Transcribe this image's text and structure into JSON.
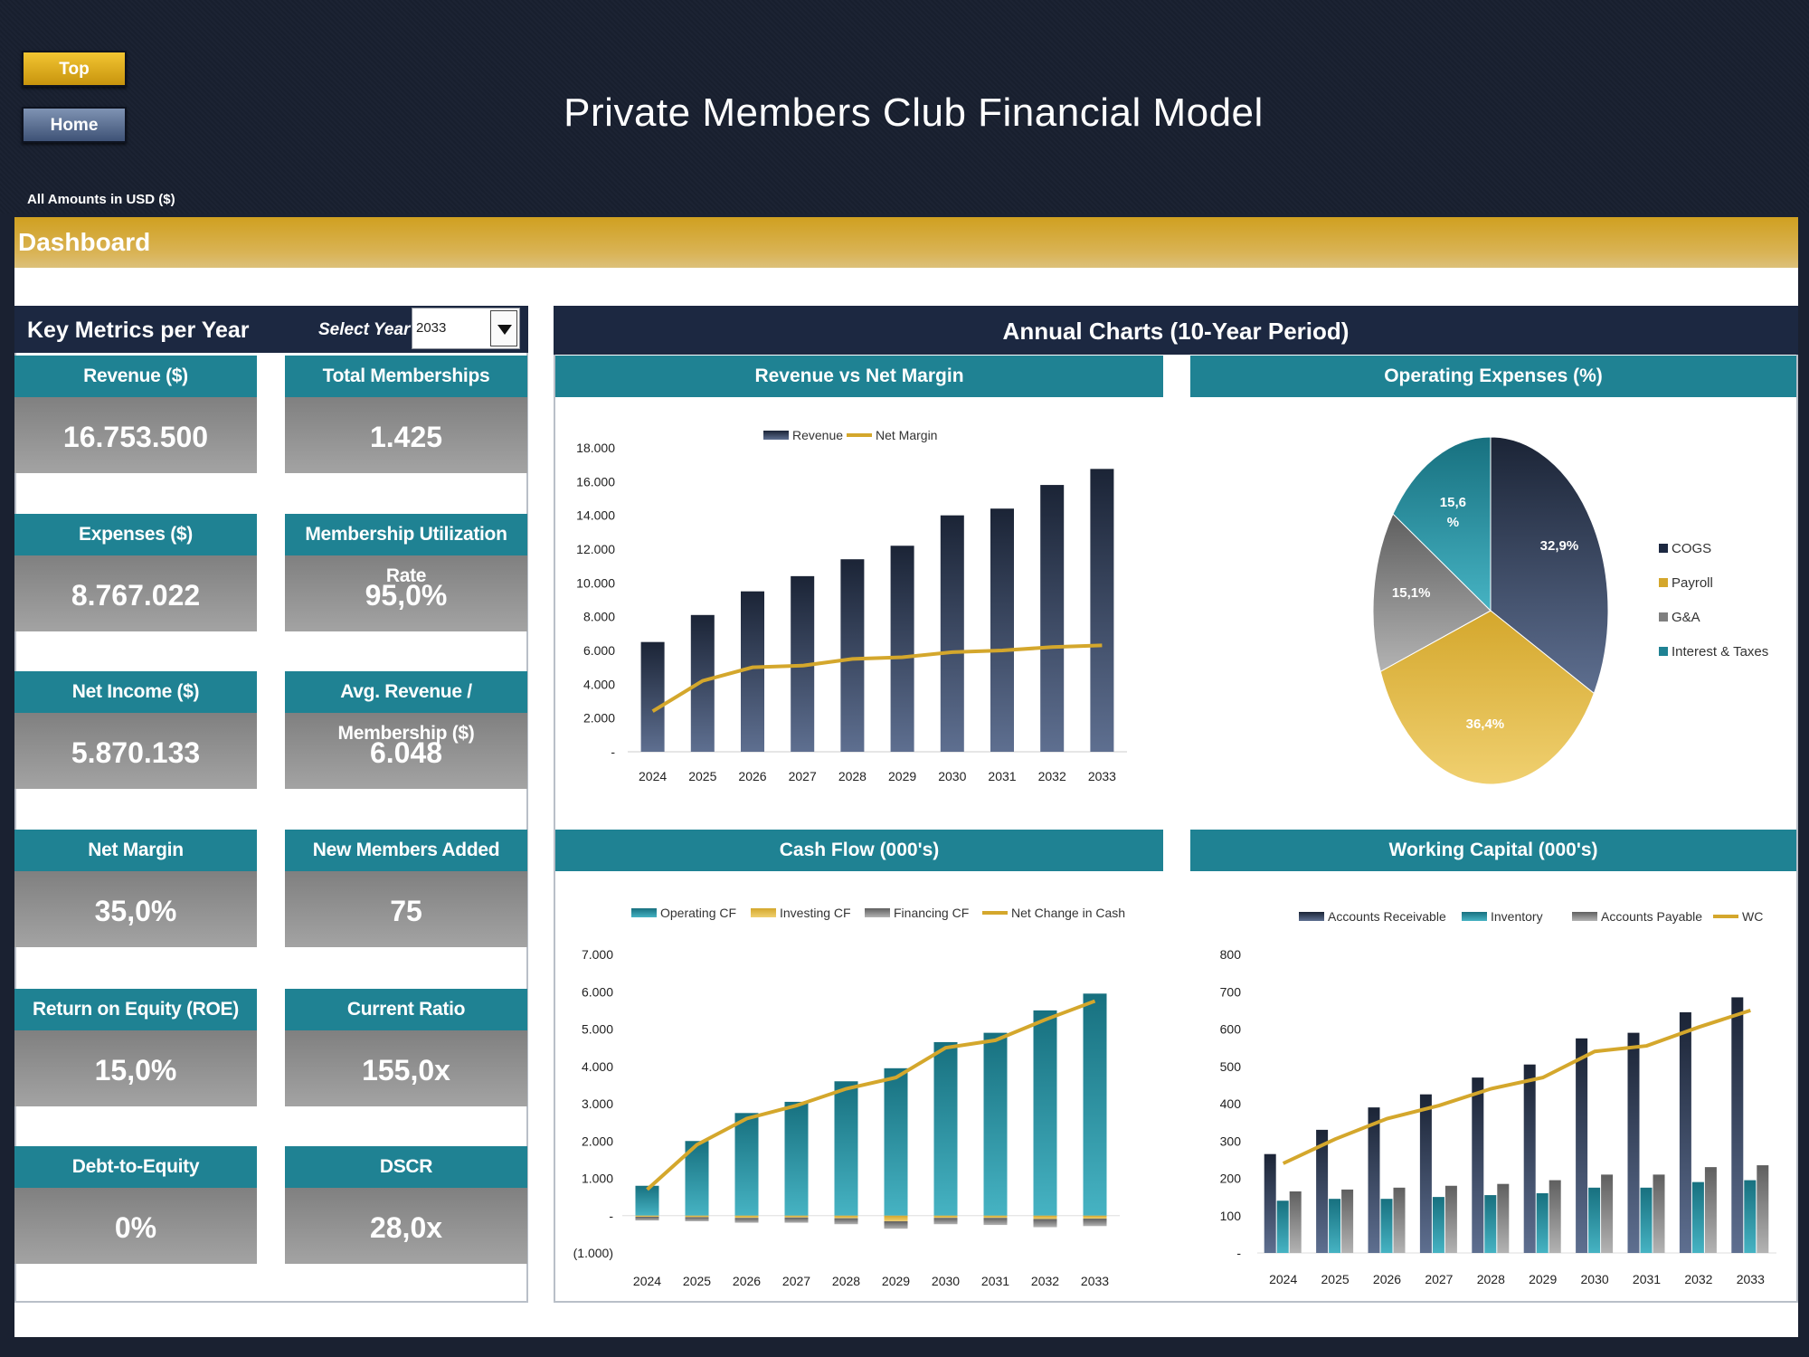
{
  "header": {
    "title": "Private Members Club Financial Model",
    "top_button": "Top",
    "home_button": "Home",
    "units_note": "All Amounts in  USD ($)",
    "section": "Dashboard"
  },
  "metrics_panel": {
    "title": "Key Metrics per Year",
    "select_label": "Select Year",
    "selected_year": "2033",
    "kpis": [
      {
        "label": "Revenue ($)",
        "value": "16.753.500"
      },
      {
        "label": "Total Memberships",
        "value": "1.425"
      },
      {
        "label": "Expenses ($)",
        "value": "8.767.022"
      },
      {
        "label": "Membership Utilization Rate",
        "value": "95,0%"
      },
      {
        "label": "Net Income ($)",
        "value": "5.870.133"
      },
      {
        "label": "Avg. Revenue / Membership ($)",
        "value": "6.048"
      },
      {
        "label": "Net Margin",
        "value": "35,0%"
      },
      {
        "label": "New Members Added",
        "value": "75"
      },
      {
        "label": "Return on Equity (ROE)",
        "value": "15,0%"
      },
      {
        "label": "Current Ratio",
        "value": "155,0x"
      },
      {
        "label": "Debt-to-Equity",
        "value": "0%"
      },
      {
        "label": "DSCR",
        "value": "28,0x"
      }
    ]
  },
  "charts_panel": {
    "title": "Annual Charts (10-Year Period)",
    "chart_titles": [
      "Revenue vs Net Margin",
      "Operating Expenses (%)",
      "Cash Flow (000's)",
      "Working Capital (000's)"
    ]
  },
  "colors": {
    "navy": "#1c2841",
    "teal": "#1f8293",
    "gold": "#d4a72c",
    "grey": "#808080"
  },
  "chart_data": [
    {
      "type": "bar",
      "title": "Revenue vs Net Margin",
      "categories": [
        "2024",
        "2025",
        "2026",
        "2027",
        "2028",
        "2029",
        "2030",
        "2031",
        "2032",
        "2033"
      ],
      "series": [
        {
          "name": "Revenue",
          "kind": "bar",
          "values": [
            6500,
            8100,
            9500,
            10400,
            11400,
            12200,
            14000,
            14400,
            15800,
            16750
          ]
        },
        {
          "name": "Net Margin",
          "kind": "line",
          "values": [
            2400,
            4200,
            5000,
            5100,
            5500,
            5600,
            5900,
            6000,
            6200,
            6300
          ]
        }
      ],
      "yticks": [
        "18.000",
        "16.000",
        "14.000",
        "12.000",
        "10.000",
        "8.000",
        "6.000",
        "4.000",
        "2.000",
        "-"
      ],
      "ylim": [
        0,
        18000
      ]
    },
    {
      "type": "pie",
      "title": "Operating Expenses (%)",
      "labels": [
        "COGS",
        "Payroll",
        "G&A",
        "Interest & Taxes"
      ],
      "values": [
        32.9,
        36.4,
        15.1,
        15.6
      ],
      "value_labels": [
        "32,9%",
        "36,4%",
        "15,1%",
        "15,6\n%"
      ],
      "colors": [
        "#1c2841",
        "#d4a72c",
        "#7f7f7f",
        "#1f8293"
      ],
      "legend": "right"
    },
    {
      "type": "bar",
      "title": "Cash Flow (000's)",
      "categories": [
        "2024",
        "2025",
        "2026",
        "2027",
        "2028",
        "2029",
        "2030",
        "2031",
        "2032",
        "2033"
      ],
      "series": [
        {
          "name": "Operating CF",
          "kind": "bar",
          "values": [
            800,
            2000,
            2750,
            3050,
            3600,
            3950,
            4650,
            4900,
            5500,
            5950
          ]
        },
        {
          "name": "Investing CF",
          "kind": "bar",
          "values": [
            -30,
            -40,
            -60,
            -50,
            -70,
            -150,
            -60,
            -60,
            -90,
            -80
          ]
        },
        {
          "name": "Financing CF",
          "kind": "bar",
          "values": [
            -100,
            -110,
            -130,
            -140,
            -160,
            -200,
            -170,
            -190,
            -220,
            -200
          ]
        },
        {
          "name": "Net Change in Cash",
          "kind": "line",
          "values": [
            700,
            1900,
            2600,
            2950,
            3400,
            3700,
            4500,
            4700,
            5250,
            5750
          ]
        }
      ],
      "yticks": [
        "7.000",
        "6.000",
        "5.000",
        "4.000",
        "3.000",
        "2.000",
        "1.000",
        "-",
        "(1.000)"
      ],
      "ylim": [
        -1000,
        7000
      ]
    },
    {
      "type": "bar",
      "title": "Working Capital (000's)",
      "categories": [
        "2024",
        "2025",
        "2026",
        "2027",
        "2028",
        "2029",
        "2030",
        "2031",
        "2032",
        "2033"
      ],
      "series": [
        {
          "name": "Accounts Receivable",
          "kind": "bar",
          "values": [
            265,
            330,
            390,
            425,
            470,
            505,
            575,
            590,
            645,
            685
          ]
        },
        {
          "name": "Inventory",
          "kind": "bar",
          "values": [
            140,
            145,
            145,
            150,
            155,
            160,
            175,
            175,
            190,
            195
          ]
        },
        {
          "name": "Accounts Payable",
          "kind": "bar",
          "values": [
            165,
            170,
            175,
            180,
            185,
            195,
            210,
            210,
            230,
            235
          ]
        },
        {
          "name": "WC",
          "kind": "line",
          "values": [
            240,
            305,
            360,
            395,
            440,
            470,
            540,
            555,
            605,
            650
          ]
        }
      ],
      "yticks": [
        "800",
        "700",
        "600",
        "500",
        "400",
        "300",
        "200",
        "100",
        "-"
      ],
      "ylim": [
        0,
        800
      ]
    }
  ]
}
